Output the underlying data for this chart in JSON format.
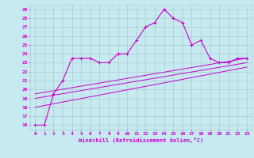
{
  "xlabel": "Windchill (Refroidissement éolien,°C)",
  "background_color": "#c6eaf0",
  "line_color": "#cc00cc",
  "grid_color": "#a8ccd0",
  "xlim": [
    -0.5,
    23.5
  ],
  "ylim": [
    15.5,
    29.5
  ],
  "xticks": [
    0,
    1,
    2,
    3,
    4,
    5,
    6,
    7,
    8,
    9,
    10,
    11,
    12,
    13,
    14,
    15,
    16,
    17,
    18,
    19,
    20,
    21,
    22,
    23
  ],
  "yticks": [
    16,
    17,
    18,
    19,
    20,
    21,
    22,
    23,
    24,
    25,
    26,
    27,
    28,
    29
  ],
  "main_x": [
    0,
    1,
    2,
    3,
    4,
    5,
    6,
    7,
    8,
    9,
    10,
    11,
    12,
    13,
    14,
    15,
    16,
    17,
    18,
    19,
    20,
    21,
    22,
    23
  ],
  "main_y": [
    16,
    16,
    19.5,
    21,
    23.5,
    23.5,
    23.5,
    23,
    23,
    24,
    24,
    25.5,
    27,
    27.5,
    29,
    28,
    27.5,
    25,
    25.5,
    23.5,
    23,
    23,
    23.5,
    23.5
  ],
  "line1_x": [
    0,
    23
  ],
  "line1_y": [
    19.5,
    23.5
  ],
  "line2_x": [
    0,
    23
  ],
  "line2_y": [
    19.0,
    23.0
  ],
  "line3_x": [
    0,
    23
  ],
  "line3_y": [
    18.0,
    22.5
  ]
}
